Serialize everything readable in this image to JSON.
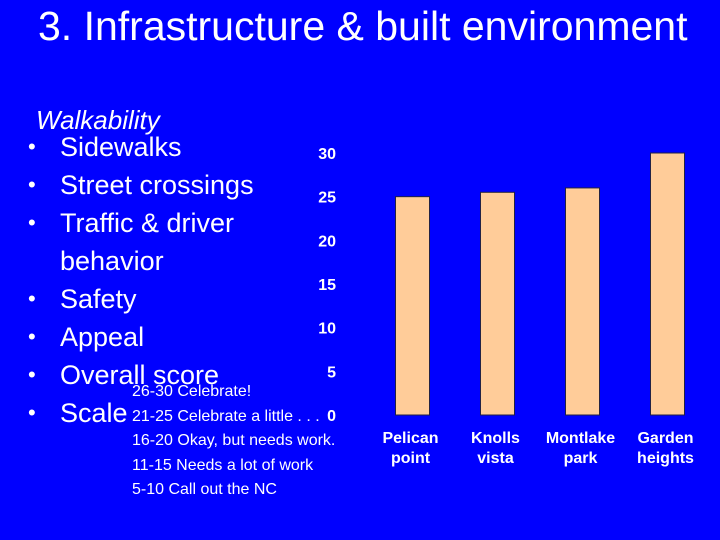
{
  "slide": {
    "title": "3. Infrastructure & built environment",
    "subtitle": "Walkability",
    "bullets": [
      "Sidewalks",
      "Street crossings",
      "Traffic & driver behavior",
      "Safety",
      "Appeal",
      "Overall score",
      "Scale"
    ],
    "scale_items": [
      "26-30 Celebrate!",
      "21-25 Celebrate a little . . .",
      "16-20 Okay, but needs work.",
      "11-15 Needs a lot of work",
      "5-10 Call out the NC"
    ],
    "colors": {
      "background": "#0000ff",
      "text": "#ffffff",
      "bar": "#ffcc99"
    }
  },
  "chart_data": {
    "type": "bar",
    "categories": [
      [
        "Pelican",
        "point"
      ],
      [
        "Knolls",
        "vista"
      ],
      [
        "Montlake",
        "park"
      ],
      [
        "Garden",
        "heights"
      ]
    ],
    "values": [
      25,
      25.5,
      26,
      30
    ],
    "yticks": [
      "30",
      "25",
      "20",
      "15",
      "10",
      "5",
      "0"
    ],
    "ylim": [
      0,
      30
    ],
    "title": "",
    "xlabel": "",
    "ylabel": "",
    "grid": false
  }
}
